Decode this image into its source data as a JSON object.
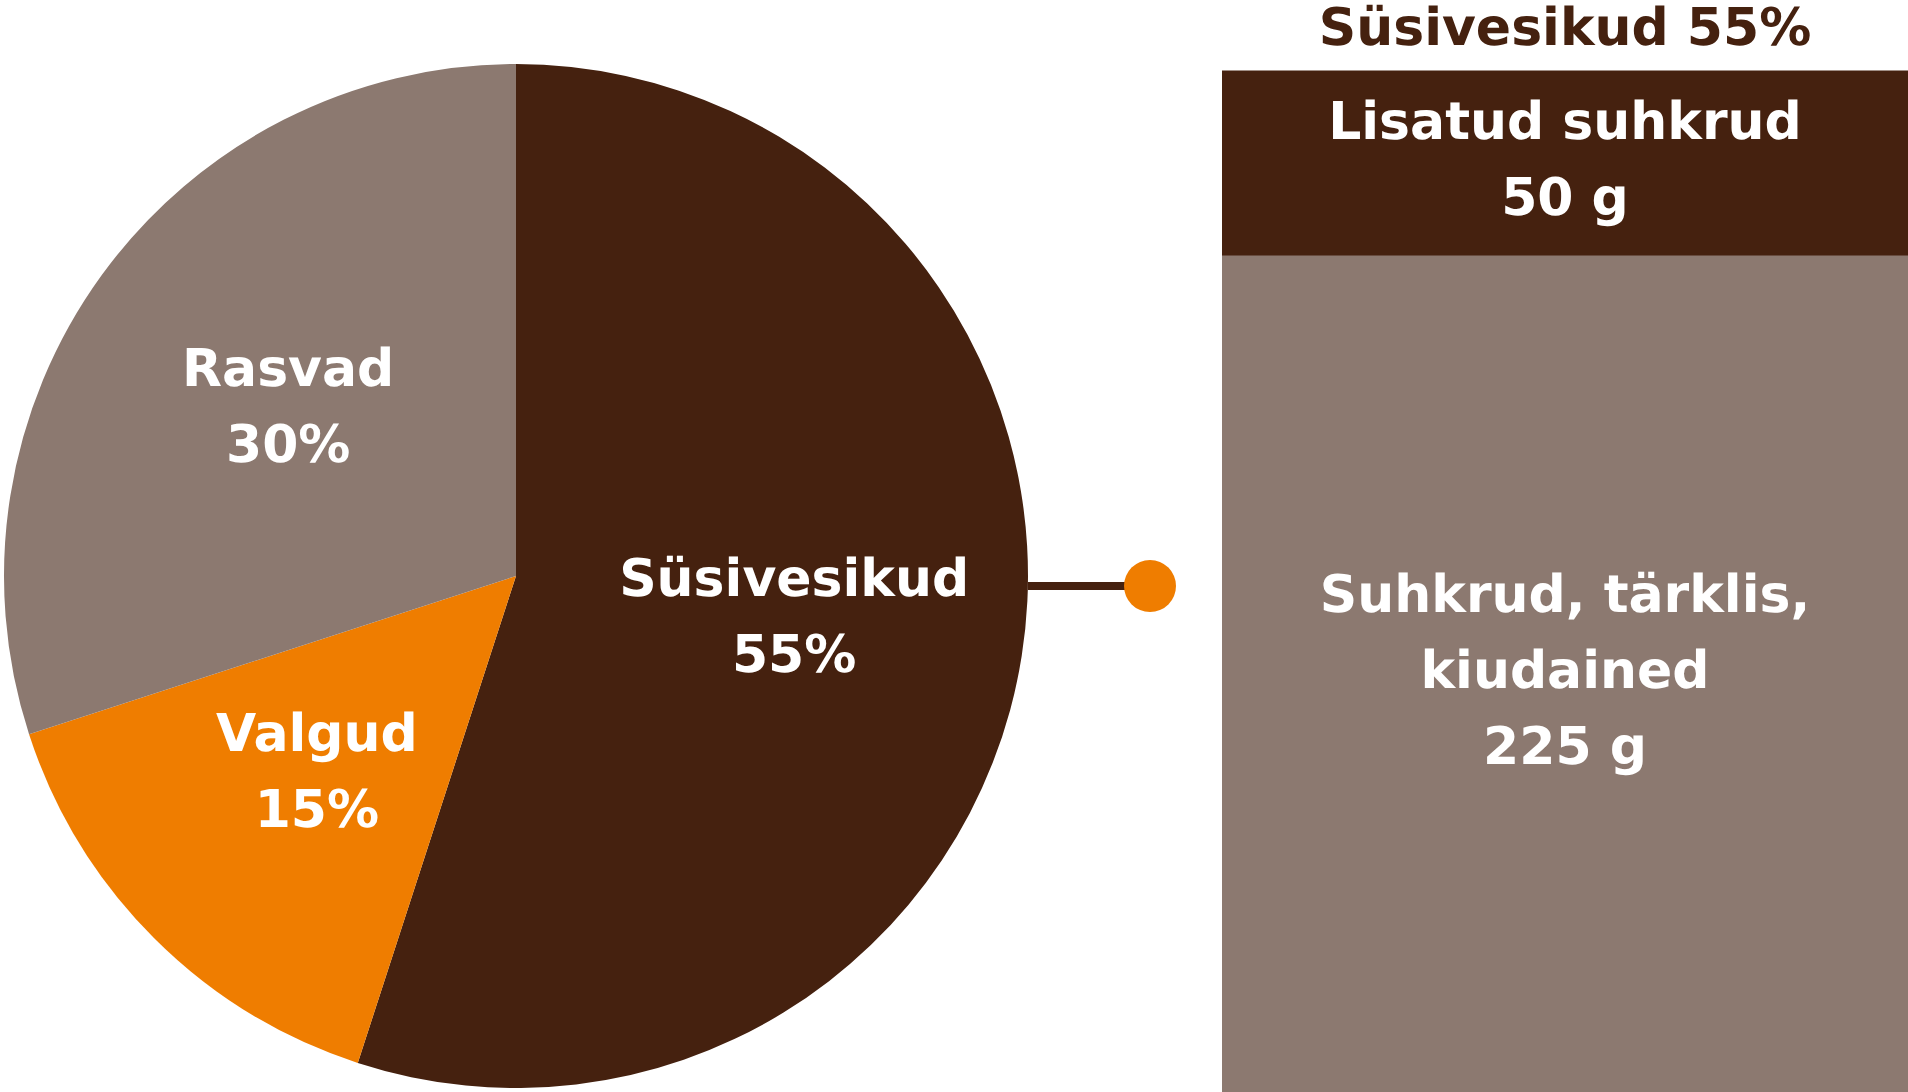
{
  "chart_data": [
    {
      "type": "pie",
      "categories": [
        "Süsivesikud",
        "Valgud",
        "Rasvad"
      ],
      "values": [
        55,
        15,
        30
      ],
      "colors": [
        "#45210f",
        "#ef7d00",
        "#8c7970"
      ],
      "value_labels": [
        "55%",
        "15%",
        "30%"
      ]
    },
    {
      "type": "bar",
      "title": "Süsivesikud 55%",
      "categories": [
        null
      ],
      "stacked": true,
      "series": [
        {
          "name": "Suhkrud, tärklis, kiudained",
          "color": "#8c7970",
          "values": [
            225
          ],
          "value_labels": [
            "225 g"
          ]
        },
        {
          "name": "Lisatud suhkrud",
          "color": "#45210f",
          "values": [
            50
          ],
          "value_labels": [
            "50 g"
          ]
        }
      ]
    }
  ]
}
